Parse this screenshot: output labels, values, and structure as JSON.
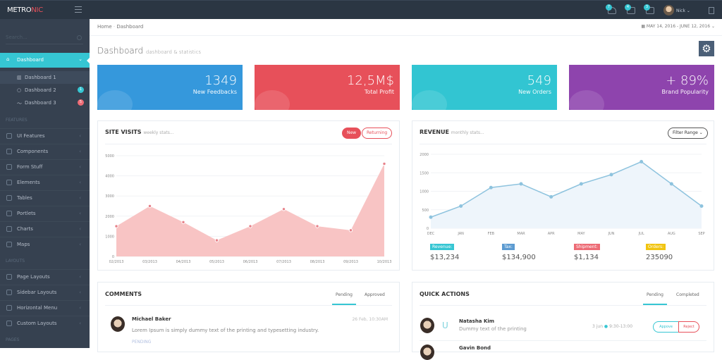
{
  "topbar": {
    "logo_a": "METRO",
    "logo_b": "NIC",
    "notifications": "7",
    "inbox": "4",
    "tasks": "3",
    "user": "Nick"
  },
  "sidebar": {
    "search_placeholder": "Search...",
    "active": "Dashboard",
    "subs": [
      {
        "label": "Dashboard 1"
      },
      {
        "label": "Dashboard 2",
        "badge": "1"
      },
      {
        "label": "Dashboard 3",
        "badge": "5"
      }
    ],
    "h_features": "FEATURES",
    "features": [
      "UI Features",
      "Components",
      "Form Stuff",
      "Elements",
      "Tables",
      "Portlets",
      "Charts",
      "Maps"
    ],
    "h_layouts": "LAYOUTS",
    "layouts": [
      "Page Layouts",
      "Sidebar Layouts",
      "Horizontal Menu",
      "Custom Layouts"
    ],
    "h_pages": "PAGES"
  },
  "breadcrumb": {
    "home": "Home",
    "sep": "·",
    "current": "Dashboard"
  },
  "daterange": "MAY 14, 2016 - JUNE 12, 2016",
  "page": {
    "title": "Dashboard",
    "subtitle": "dashboard & statistics"
  },
  "stats": [
    {
      "value": "1349",
      "label": "New Feedbacks",
      "color": "#3598dc"
    },
    {
      "value": "12,5M$",
      "label": "Total Profit",
      "color": "#e7505a"
    },
    {
      "value": "549",
      "label": "New Orders",
      "color": "#32c5d2"
    },
    {
      "value": "+ 89%",
      "label": "Brand Popularity",
      "color": "#8e44ad"
    }
  ],
  "site_visits": {
    "title": "SITE VISITS",
    "subtitle": "weekly stats...",
    "btn_new": "New",
    "btn_returning": "Returning"
  },
  "revenue": {
    "title": "REVENUE",
    "subtitle": "monthly stats...",
    "filter": "Filter Range",
    "legend": [
      {
        "label": "Revenue:",
        "value": "$13,234",
        "color": "#36c6d3"
      },
      {
        "label": "Tax:",
        "value": "$134,900",
        "color": "#5c9bd1"
      },
      {
        "label": "Shipment:",
        "value": "$1,134",
        "color": "#ed6b75"
      },
      {
        "label": "Orders:",
        "value": "235090",
        "color": "#f1c40f"
      }
    ]
  },
  "chart_data": [
    {
      "type": "area",
      "categories": [
        "02/2013",
        "03/2013",
        "04/2013",
        "05/2013",
        "06/2013",
        "07/2013",
        "08/2013",
        "09/2013",
        "10/2013"
      ],
      "values": [
        1500,
        2500,
        1700,
        800,
        1500,
        2350,
        1500,
        1300,
        4600
      ],
      "ylim": [
        0,
        5000
      ],
      "yticks": [
        0,
        1000,
        2000,
        3000,
        4000,
        5000
      ],
      "color": "#f8c4c4",
      "grid": true
    },
    {
      "type": "line",
      "categories": [
        "DEC",
        "JAN",
        "FEB",
        "MAR",
        "APR",
        "MAY",
        "JUN",
        "JUL",
        "AUG",
        "SEP"
      ],
      "values": [
        300,
        600,
        1100,
        1200,
        850,
        1200,
        1450,
        1800,
        1200,
        600
      ],
      "ylim": [
        0,
        2000
      ],
      "yticks": [
        0,
        500,
        1000,
        1500,
        2000
      ],
      "color": "#8ec3de",
      "grid": true
    }
  ],
  "comments": {
    "title": "COMMENTS",
    "tab_pending": "Pending",
    "tab_approved": "Approved",
    "name": "Michael Baker",
    "date": "26 Feb, 10:30AM",
    "text": "Lorem Ipsum is simply dummy text of the printing and typesetting industry.",
    "status": "PENDING"
  },
  "quick": {
    "title": "QUICK ACTIONS",
    "tab_pending": "Pending",
    "tab_completed": "Completed",
    "name": "Natasha Kim",
    "text": "Dummy text of the printing",
    "date": "3 jun",
    "time": "9:30-13:00",
    "approve": "Appove",
    "reject": "Reject",
    "name2": "Gavin Bond"
  }
}
